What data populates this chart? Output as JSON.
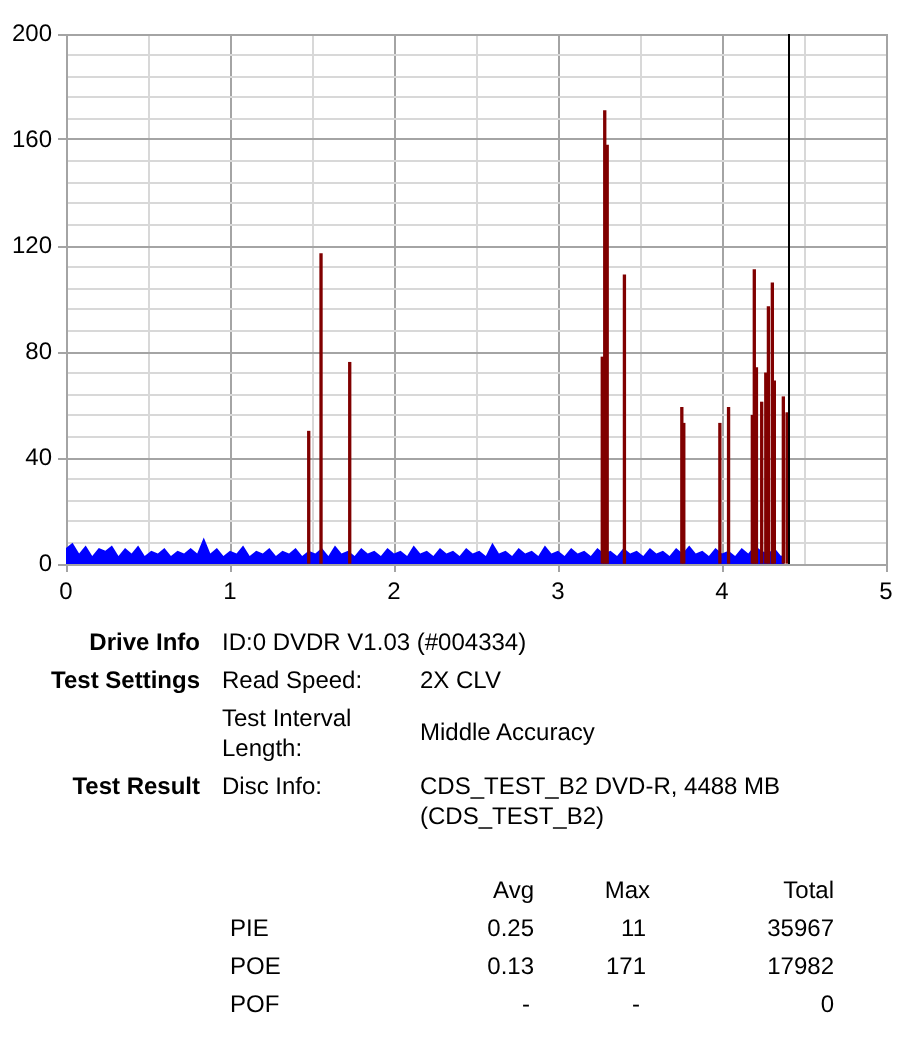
{
  "chart_data": {
    "type": "area",
    "x": [
      0,
      0.04,
      0.08,
      0.12,
      0.16,
      0.2,
      0.24,
      0.28,
      0.32,
      0.36,
      0.4,
      0.44,
      0.48,
      0.52,
      0.56,
      0.6,
      0.64,
      0.68,
      0.72,
      0.76,
      0.8,
      0.84,
      0.88,
      0.92,
      0.96,
      1,
      1.04,
      1.08,
      1.12,
      1.16,
      1.2,
      1.24,
      1.28,
      1.32,
      1.36,
      1.4,
      1.44,
      1.48,
      1.52,
      1.56,
      1.6,
      1.64,
      1.68,
      1.72,
      1.76,
      1.8,
      1.84,
      1.88,
      1.92,
      1.96,
      2,
      2.04,
      2.08,
      2.12,
      2.16,
      2.2,
      2.24,
      2.28,
      2.32,
      2.36,
      2.4,
      2.44,
      2.48,
      2.52,
      2.56,
      2.6,
      2.64,
      2.68,
      2.72,
      2.76,
      2.8,
      2.84,
      2.88,
      2.92,
      2.96,
      3,
      3.04,
      3.08,
      3.12,
      3.16,
      3.2,
      3.24,
      3.28,
      3.32,
      3.36,
      3.4,
      3.44,
      3.48,
      3.52,
      3.56,
      3.6,
      3.64,
      3.68,
      3.72,
      3.76,
      3.8,
      3.84,
      3.88,
      3.92,
      3.96,
      4,
      4.04,
      4.08,
      4.12,
      4.16,
      4.2,
      4.24,
      4.28,
      4.32,
      4.36,
      4.38
    ],
    "series": [
      {
        "color": "#0000ff",
        "values": [
          6,
          8,
          4,
          7,
          3,
          6,
          5,
          7,
          3,
          6,
          4,
          7,
          3,
          5,
          4,
          6,
          3,
          5,
          4,
          6,
          4,
          10,
          4,
          6,
          3,
          5,
          4,
          7,
          3,
          5,
          4,
          6,
          3,
          5,
          4,
          6,
          3,
          5,
          4,
          6,
          3,
          7,
          4,
          5,
          3,
          6,
          4,
          5,
          3,
          6,
          4,
          5,
          3,
          7,
          4,
          5,
          3,
          6,
          4,
          5,
          3,
          6,
          4,
          5,
          3,
          8,
          4,
          5,
          3,
          6,
          4,
          5,
          3,
          7,
          4,
          5,
          3,
          6,
          4,
          5,
          3,
          6,
          4,
          5,
          3,
          6,
          4,
          5,
          3,
          6,
          4,
          5,
          3,
          6,
          4,
          7,
          4,
          5,
          3,
          6,
          4,
          5,
          3,
          6,
          4,
          7,
          5,
          4,
          6,
          3,
          4
        ]
      },
      {
        "type": "bar",
        "color": "#800000",
        "x": [
          1.48,
          1.555,
          1.73,
          3.27,
          3.285,
          3.3,
          3.405,
          3.755,
          3.767,
          3.987,
          4.04,
          4.185,
          4.197,
          4.21,
          4.242,
          4.267,
          4.283,
          4.307,
          4.319,
          4.374,
          4.397
        ],
        "values": [
          50,
          117,
          76,
          78,
          171,
          158,
          109,
          59,
          53,
          53,
          59,
          56,
          111,
          74,
          61,
          72,
          97,
          106,
          69,
          63,
          57
        ]
      }
    ],
    "xlim": [
      0,
      5
    ],
    "xticks": [
      0,
      {
        "value": 0.5,
        "label": null
      },
      1,
      {
        "value": 1.5,
        "label": null
      },
      2,
      {
        "value": 2.5,
        "label": null
      },
      3,
      {
        "value": 3.5,
        "label": null
      },
      4,
      {
        "value": 4.5,
        "label": null
      },
      5
    ],
    "ylim": [
      0,
      200
    ],
    "yticks": [
      0,
      {
        "value": 8,
        "label": null
      },
      {
        "value": 16,
        "label": null
      },
      {
        "value": 24,
        "label": null
      },
      {
        "value": 32,
        "label": null
      },
      40,
      {
        "value": 48,
        "label": null
      },
      {
        "value": 56,
        "label": null
      },
      {
        "value": 64,
        "label": null
      },
      {
        "value": 72,
        "label": null
      },
      80,
      {
        "value": 88,
        "label": null
      },
      {
        "value": 96,
        "label": null
      },
      {
        "value": 104,
        "label": null
      },
      {
        "value": 112,
        "label": null
      },
      120,
      {
        "value": 128,
        "label": null
      },
      {
        "value": 136,
        "label": null
      },
      {
        "value": 144,
        "label": null
      },
      {
        "value": 152,
        "label": null
      },
      160,
      {
        "value": 168,
        "label": null
      },
      {
        "value": 176,
        "label": null
      },
      {
        "value": 184,
        "label": null
      },
      {
        "value": 192,
        "label": null
      },
      200
    ],
    "grid": true,
    "ref_lines": [
      {
        "axis": "x",
        "value": 4.4,
        "color": "#000000"
      }
    ],
    "annotations": [
      "Drive Info",
      "ID:0 DVDR V1.03 (#004334)",
      "Test Settings",
      "Read Speed:",
      "2X CLV",
      "Test Interval Length:",
      "Middle Accuracy",
      "Test Result",
      "Disc Info:",
      "CDS_TEST_B2 DVD-R, 4488 MB (CDS_TEST_B2)",
      "Avg",
      "Max",
      "Total",
      "PIE",
      "0.25",
      "11",
      "35967",
      "POE",
      "0.13",
      "171",
      "17982",
      "POF",
      "-",
      "-",
      "0"
    ]
  }
}
